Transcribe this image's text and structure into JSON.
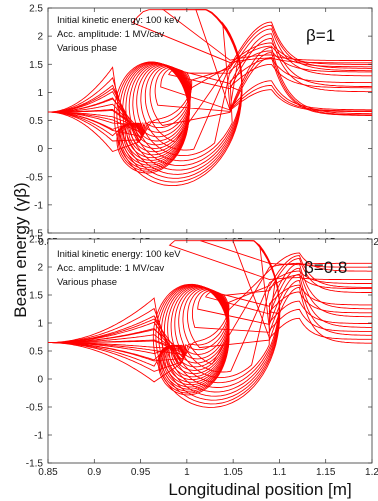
{
  "chart_data": [
    {
      "type": "line",
      "ylabel": "Beam energy (γβ)",
      "xlim": [
        0.85,
        1.2
      ],
      "ylim": [
        -1.5,
        2.5
      ],
      "x_ticks": [
        "0.85",
        "0.9",
        "0.95",
        "1",
        "1.05",
        "1.1",
        "1.15",
        "1.2"
      ],
      "y_ticks": [
        "2.5",
        "2",
        "1.5",
        "1",
        "0.5",
        "0",
        "-0.5",
        "-1",
        "-1.5"
      ],
      "annotations": [
        "Initial kinetic energy: 100 keV",
        "Acc. amplitude: 1 MV/cav",
        "Various phase"
      ],
      "beta_label": "β=1",
      "grid": false,
      "color": "#ff0000",
      "params": {
        "x_focus": 0.945,
        "y_focus": 0.1,
        "x_rise": 1.0,
        "x_settle": 1.075,
        "init_level": 0.65
      },
      "final_levels": [
        1.5,
        1.45,
        1.35,
        1.15,
        1.05,
        0.65,
        0.62,
        0.6
      ],
      "trajectory_count": 18
    },
    {
      "type": "line",
      "xlabel": "Longitudinal position [m]",
      "ylabel": "Beam energy (γβ)",
      "xlim": [
        0.85,
        1.2
      ],
      "ylim": [
        -1.5,
        2.5
      ],
      "x_ticks": [
        "0.85",
        "0.9",
        "0.95",
        "1",
        "1.05",
        "1.1",
        "1.15",
        "1.2"
      ],
      "y_ticks": [
        "2.5",
        "2",
        "1.5",
        "1",
        "0.5",
        "0",
        "-0.5",
        "-1",
        "-1.5"
      ],
      "annotations": [
        "Initial kinetic energy: 100 keV",
        "Acc. amplitude: 1 MV/cav",
        "Various phase"
      ],
      "beta_label": "β=0.8",
      "grid": false,
      "color": "#ff0000",
      "params": {
        "x_focus": 0.99,
        "y_focus": 0.25,
        "x_rise": 1.04,
        "x_settle": 1.12,
        "init_level": 0.65
      },
      "final_levels": [
        2.0,
        1.7,
        1.6,
        1.3,
        1.15,
        0.95,
        0.8,
        0.65
      ],
      "trajectory_count": 18
    }
  ]
}
